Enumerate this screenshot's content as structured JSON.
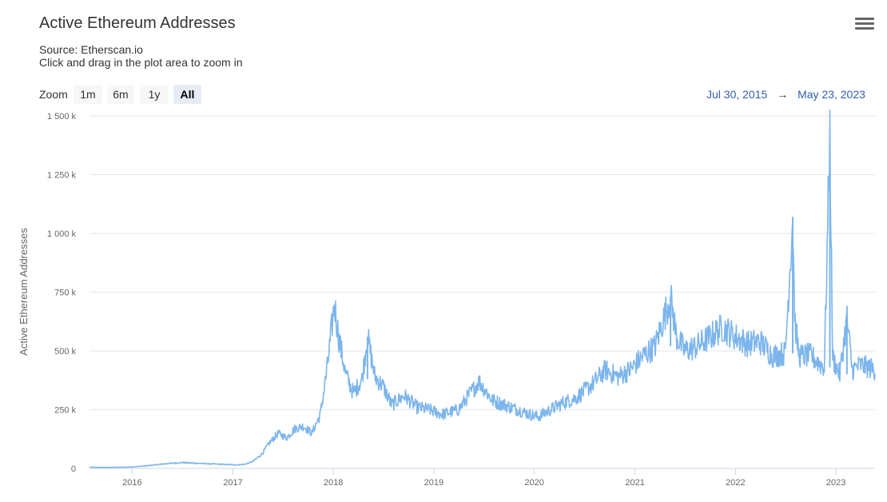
{
  "header": {
    "title": "Active Ethereum Addresses",
    "source": "Source: Etherscan.io",
    "hint": "Click and drag in the plot area to zoom in",
    "menu_icon": "hamburger-menu-icon"
  },
  "zoom": {
    "label": "Zoom",
    "buttons": [
      "1m",
      "6m",
      "1y",
      "All"
    ],
    "selected": "All"
  },
  "range": {
    "from": "Jul 30, 2015",
    "arrow": "→",
    "to": "May 23, 2023"
  },
  "colors": {
    "line": "#7cb5ec",
    "grid": "#e6e6e6",
    "range_text": "#335cad"
  },
  "chart_data": {
    "type": "line",
    "ylabel": "Active Ethereum Addresses",
    "xlabel": "",
    "ylim": [
      0,
      1500000
    ],
    "xlim": [
      "2015-07-30",
      "2023-05-23"
    ],
    "y_ticks": [
      {
        "value": 0,
        "label": "0"
      },
      {
        "value": 250000,
        "label": "250 k"
      },
      {
        "value": 500000,
        "label": "500 k"
      },
      {
        "value": 750000,
        "label": "750 k"
      },
      {
        "value": 1000000,
        "label": "1 000 k"
      },
      {
        "value": 1250000,
        "label": "1 250 k"
      },
      {
        "value": 1500000,
        "label": "1 500 k"
      }
    ],
    "x_ticks": [
      {
        "value": "2016-01-01",
        "label": "2016"
      },
      {
        "value": "2017-01-01",
        "label": "2017"
      },
      {
        "value": "2018-01-01",
        "label": "2018"
      },
      {
        "value": "2019-01-01",
        "label": "2019"
      },
      {
        "value": "2020-01-01",
        "label": "2020"
      },
      {
        "value": "2021-01-01",
        "label": "2021"
      },
      {
        "value": "2022-01-01",
        "label": "2022"
      },
      {
        "value": "2023-01-01",
        "label": "2023"
      }
    ],
    "grid": true,
    "series": [
      {
        "points": [
          [
            "2015-07-30",
            5000
          ],
          [
            "2015-10-01",
            4000
          ],
          [
            "2016-01-01",
            6000
          ],
          [
            "2016-03-01",
            12000
          ],
          [
            "2016-05-01",
            20000
          ],
          [
            "2016-07-01",
            25000
          ],
          [
            "2016-10-01",
            20000
          ],
          [
            "2016-12-01",
            17000
          ],
          [
            "2017-01-15",
            15000
          ],
          [
            "2017-02-15",
            18000
          ],
          [
            "2017-03-15",
            30000
          ],
          [
            "2017-04-15",
            60000
          ],
          [
            "2017-05-15",
            110000
          ],
          [
            "2017-06-15",
            150000
          ],
          [
            "2017-07-15",
            130000
          ],
          [
            "2017-08-15",
            170000
          ],
          [
            "2017-09-15",
            180000
          ],
          [
            "2017-10-15",
            150000
          ],
          [
            "2017-11-15",
            230000
          ],
          [
            "2017-12-10",
            430000
          ],
          [
            "2018-01-05",
            700000
          ],
          [
            "2018-01-20",
            560000
          ],
          [
            "2018-02-15",
            400000
          ],
          [
            "2018-03-15",
            320000
          ],
          [
            "2018-04-15",
            380000
          ],
          [
            "2018-05-05",
            560000
          ],
          [
            "2018-06-01",
            390000
          ],
          [
            "2018-07-01",
            350000
          ],
          [
            "2018-08-01",
            270000
          ],
          [
            "2018-09-15",
            310000
          ],
          [
            "2018-11-01",
            260000
          ],
          [
            "2018-12-15",
            250000
          ],
          [
            "2019-02-01",
            230000
          ],
          [
            "2019-04-01",
            250000
          ],
          [
            "2019-05-01",
            300000
          ],
          [
            "2019-06-15",
            370000
          ],
          [
            "2019-08-01",
            290000
          ],
          [
            "2019-09-15",
            270000
          ],
          [
            "2019-11-01",
            250000
          ],
          [
            "2019-12-15",
            230000
          ],
          [
            "2020-01-15",
            220000
          ],
          [
            "2020-03-01",
            250000
          ],
          [
            "2020-04-15",
            280000
          ],
          [
            "2020-06-01",
            300000
          ],
          [
            "2020-08-01",
            360000
          ],
          [
            "2020-09-15",
            420000
          ],
          [
            "2020-11-01",
            390000
          ],
          [
            "2020-12-15",
            420000
          ],
          [
            "2021-02-01",
            480000
          ],
          [
            "2021-03-15",
            520000
          ],
          [
            "2021-05-10",
            730000
          ],
          [
            "2021-06-01",
            560000
          ],
          [
            "2021-07-01",
            500000
          ],
          [
            "2021-08-15",
            520000
          ],
          [
            "2021-10-01",
            560000
          ],
          [
            "2021-11-15",
            600000
          ],
          [
            "2022-01-01",
            560000
          ],
          [
            "2022-02-15",
            530000
          ],
          [
            "2022-04-01",
            540000
          ],
          [
            "2022-05-15",
            480000
          ],
          [
            "2022-07-01",
            490000
          ],
          [
            "2022-07-28",
            1070000
          ],
          [
            "2022-08-05",
            620000
          ],
          [
            "2022-08-20",
            480000
          ],
          [
            "2022-10-01",
            480000
          ],
          [
            "2022-11-20",
            430000
          ],
          [
            "2022-12-10",
            1420000
          ],
          [
            "2022-12-20",
            470000
          ],
          [
            "2023-01-15",
            400000
          ],
          [
            "2023-02-10",
            640000
          ],
          [
            "2023-03-01",
            420000
          ],
          [
            "2023-04-01",
            440000
          ],
          [
            "2023-05-23",
            420000
          ]
        ]
      }
    ]
  }
}
